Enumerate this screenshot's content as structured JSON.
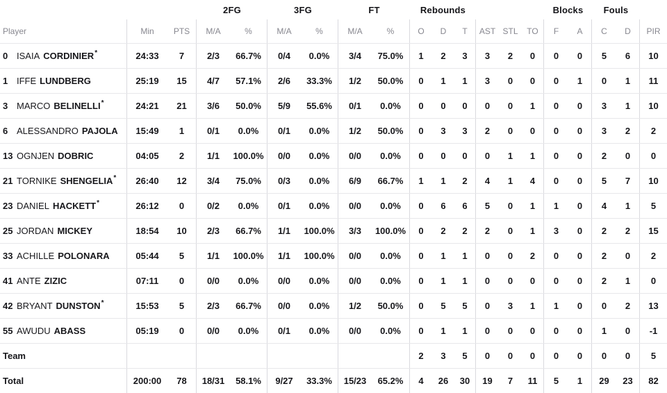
{
  "header": {
    "groups": {
      "fg2": "2FG",
      "fg3": "3FG",
      "ft": "FT",
      "rebounds": "Rebounds",
      "blocks": "Blocks",
      "fouls": "Fouls"
    },
    "cols": {
      "player": "Player",
      "min": "Min",
      "pts": "PTS",
      "ma": "M/A",
      "pct": "%",
      "o": "O",
      "d": "D",
      "t": "T",
      "ast": "AST",
      "stl": "STL",
      "to": "TO",
      "f": "F",
      "a": "A",
      "c": "C",
      "d2": "D",
      "pir": "PIR"
    }
  },
  "colors": {
    "text": "#17171b",
    "muted_header": "#87878f",
    "divider": "#d9d9de",
    "row_line": "#e7e7ea"
  },
  "rows": [
    {
      "num": "0",
      "first": "ISAIA",
      "last": "CORDINIER",
      "star": "*",
      "min": "24:33",
      "pts": "7",
      "fg2ma": "2/3",
      "fg2pct": "66.7%",
      "fg3ma": "0/4",
      "fg3pct": "0.0%",
      "ftma": "3/4",
      "ftpct": "75.0%",
      "o": "1",
      "d": "2",
      "t": "3",
      "ast": "3",
      "stl": "2",
      "to": "0",
      "f": "0",
      "a": "0",
      "c": "5",
      "d2": "6",
      "pir": "10"
    },
    {
      "num": "1",
      "first": "IFFE",
      "last": "LUNDBERG",
      "star": "",
      "min": "25:19",
      "pts": "15",
      "fg2ma": "4/7",
      "fg2pct": "57.1%",
      "fg3ma": "2/6",
      "fg3pct": "33.3%",
      "ftma": "1/2",
      "ftpct": "50.0%",
      "o": "0",
      "d": "1",
      "t": "1",
      "ast": "3",
      "stl": "0",
      "to": "0",
      "f": "0",
      "a": "1",
      "c": "0",
      "d2": "1",
      "pir": "11"
    },
    {
      "num": "3",
      "first": "MARCO",
      "last": "BELINELLI",
      "star": "*",
      "min": "24:21",
      "pts": "21",
      "fg2ma": "3/6",
      "fg2pct": "50.0%",
      "fg3ma": "5/9",
      "fg3pct": "55.6%",
      "ftma": "0/1",
      "ftpct": "0.0%",
      "o": "0",
      "d": "0",
      "t": "0",
      "ast": "0",
      "stl": "0",
      "to": "1",
      "f": "0",
      "a": "0",
      "c": "3",
      "d2": "1",
      "pir": "10"
    },
    {
      "num": "6",
      "first": "ALESSANDRO",
      "last": "PAJOLA",
      "star": "",
      "min": "15:49",
      "pts": "1",
      "fg2ma": "0/1",
      "fg2pct": "0.0%",
      "fg3ma": "0/1",
      "fg3pct": "0.0%",
      "ftma": "1/2",
      "ftpct": "50.0%",
      "o": "0",
      "d": "3",
      "t": "3",
      "ast": "2",
      "stl": "0",
      "to": "0",
      "f": "0",
      "a": "0",
      "c": "3",
      "d2": "2",
      "pir": "2"
    },
    {
      "num": "13",
      "first": "OGNJEN",
      "last": "DOBRIC",
      "star": "",
      "min": "04:05",
      "pts": "2",
      "fg2ma": "1/1",
      "fg2pct": "100.0%",
      "fg3ma": "0/0",
      "fg3pct": "0.0%",
      "ftma": "0/0",
      "ftpct": "0.0%",
      "o": "0",
      "d": "0",
      "t": "0",
      "ast": "0",
      "stl": "1",
      "to": "1",
      "f": "0",
      "a": "0",
      "c": "2",
      "d2": "0",
      "pir": "0"
    },
    {
      "num": "21",
      "first": "TORNIKE",
      "last": "SHENGELIA",
      "star": "*",
      "min": "26:40",
      "pts": "12",
      "fg2ma": "3/4",
      "fg2pct": "75.0%",
      "fg3ma": "0/3",
      "fg3pct": "0.0%",
      "ftma": "6/9",
      "ftpct": "66.7%",
      "o": "1",
      "d": "1",
      "t": "2",
      "ast": "4",
      "stl": "1",
      "to": "4",
      "f": "0",
      "a": "0",
      "c": "5",
      "d2": "7",
      "pir": "10"
    },
    {
      "num": "23",
      "first": "DANIEL",
      "last": "HACKETT",
      "star": "*",
      "min": "26:12",
      "pts": "0",
      "fg2ma": "0/2",
      "fg2pct": "0.0%",
      "fg3ma": "0/1",
      "fg3pct": "0.0%",
      "ftma": "0/0",
      "ftpct": "0.0%",
      "o": "0",
      "d": "6",
      "t": "6",
      "ast": "5",
      "stl": "0",
      "to": "1",
      "f": "1",
      "a": "0",
      "c": "4",
      "d2": "1",
      "pir": "5"
    },
    {
      "num": "25",
      "first": "JORDAN",
      "last": "MICKEY",
      "star": "",
      "min": "18:54",
      "pts": "10",
      "fg2ma": "2/3",
      "fg2pct": "66.7%",
      "fg3ma": "1/1",
      "fg3pct": "100.0%",
      "ftma": "3/3",
      "ftpct": "100.0%",
      "o": "0",
      "d": "2",
      "t": "2",
      "ast": "2",
      "stl": "0",
      "to": "1",
      "f": "3",
      "a": "0",
      "c": "2",
      "d2": "2",
      "pir": "15"
    },
    {
      "num": "33",
      "first": "ACHILLE",
      "last": "POLONARA",
      "star": "",
      "min": "05:44",
      "pts": "5",
      "fg2ma": "1/1",
      "fg2pct": "100.0%",
      "fg3ma": "1/1",
      "fg3pct": "100.0%",
      "ftma": "0/0",
      "ftpct": "0.0%",
      "o": "0",
      "d": "1",
      "t": "1",
      "ast": "0",
      "stl": "0",
      "to": "2",
      "f": "0",
      "a": "0",
      "c": "2",
      "d2": "0",
      "pir": "2"
    },
    {
      "num": "41",
      "first": "ANTE",
      "last": "ZIZIC",
      "star": "",
      "min": "07:11",
      "pts": "0",
      "fg2ma": "0/0",
      "fg2pct": "0.0%",
      "fg3ma": "0/0",
      "fg3pct": "0.0%",
      "ftma": "0/0",
      "ftpct": "0.0%",
      "o": "0",
      "d": "1",
      "t": "1",
      "ast": "0",
      "stl": "0",
      "to": "0",
      "f": "0",
      "a": "0",
      "c": "2",
      "d2": "1",
      "pir": "0"
    },
    {
      "num": "42",
      "first": "BRYANT",
      "last": "DUNSTON",
      "star": "*",
      "min": "15:53",
      "pts": "5",
      "fg2ma": "2/3",
      "fg2pct": "66.7%",
      "fg3ma": "0/0",
      "fg3pct": "0.0%",
      "ftma": "1/2",
      "ftpct": "50.0%",
      "o": "0",
      "d": "5",
      "t": "5",
      "ast": "0",
      "stl": "3",
      "to": "1",
      "f": "1",
      "a": "0",
      "c": "0",
      "d2": "2",
      "pir": "13"
    },
    {
      "num": "55",
      "first": "AWUDU",
      "last": "ABASS",
      "star": "",
      "min": "05:19",
      "pts": "0",
      "fg2ma": "0/0",
      "fg2pct": "0.0%",
      "fg3ma": "0/1",
      "fg3pct": "0.0%",
      "ftma": "0/0",
      "ftpct": "0.0%",
      "o": "0",
      "d": "1",
      "t": "1",
      "ast": "0",
      "stl": "0",
      "to": "0",
      "f": "0",
      "a": "0",
      "c": "1",
      "d2": "0",
      "pir": "-1"
    },
    {
      "label": "Team",
      "min": "",
      "pts": "",
      "fg2ma": "",
      "fg2pct": "",
      "fg3ma": "",
      "fg3pct": "",
      "ftma": "",
      "ftpct": "",
      "o": "2",
      "d": "3",
      "t": "5",
      "ast": "0",
      "stl": "0",
      "to": "0",
      "f": "0",
      "a": "0",
      "c": "0",
      "d2": "0",
      "pir": "5"
    },
    {
      "label": "Total",
      "min": "200:00",
      "pts": "78",
      "fg2ma": "18/31",
      "fg2pct": "58.1%",
      "fg3ma": "9/27",
      "fg3pct": "33.3%",
      "ftma": "15/23",
      "ftpct": "65.2%",
      "o": "4",
      "d": "26",
      "t": "30",
      "ast": "19",
      "stl": "7",
      "to": "11",
      "f": "5",
      "a": "1",
      "c": "29",
      "d2": "23",
      "pir": "82"
    }
  ]
}
